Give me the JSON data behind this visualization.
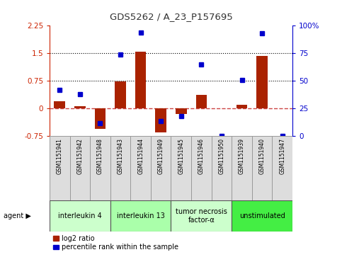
{
  "title": "GDS5262 / A_23_P157695",
  "samples": [
    "GSM1151941",
    "GSM1151942",
    "GSM1151948",
    "GSM1151943",
    "GSM1151944",
    "GSM1151949",
    "GSM1151945",
    "GSM1151946",
    "GSM1151950",
    "GSM1151939",
    "GSM1151940",
    "GSM1151947"
  ],
  "log2_ratio": [
    0.2,
    0.07,
    -0.55,
    0.73,
    1.55,
    -0.65,
    -0.15,
    0.37,
    0.0,
    0.1,
    1.43,
    0.0
  ],
  "percentile": [
    42,
    38,
    12,
    74,
    94,
    14,
    18,
    65,
    0,
    51,
    93,
    0
  ],
  "agents": [
    {
      "label": "interleukin 4",
      "start": 0,
      "end": 3,
      "color": "#ccffcc"
    },
    {
      "label": "interleukin 13",
      "start": 3,
      "end": 6,
      "color": "#aaffaa"
    },
    {
      "label": "tumor necrosis\nfactor-α",
      "start": 6,
      "end": 9,
      "color": "#ccffcc"
    },
    {
      "label": "unstimulated",
      "start": 9,
      "end": 12,
      "color": "#44ee44"
    }
  ],
  "ylim_left": [
    -0.75,
    2.25
  ],
  "ylim_right": [
    0,
    100
  ],
  "yticks_left": [
    -0.75,
    0,
    0.75,
    1.5,
    2.25
  ],
  "ytick_labels_left": [
    "-0.75",
    "0",
    "0.75",
    "1.5",
    "2.25"
  ],
  "yticks_right": [
    0,
    25,
    50,
    75,
    100
  ],
  "ytick_labels_right": [
    "0",
    "25",
    "50",
    "75",
    "100%"
  ],
  "bar_color": "#aa2200",
  "dot_color": "#0000cc",
  "hline_zero_color": "#cc4444",
  "hline_075_color": "#000000",
  "hline_150_color": "#000000",
  "title_color": "#333333",
  "left_axis_color": "#cc2200",
  "right_axis_color": "#0000cc",
  "bg_color": "#ffffff"
}
